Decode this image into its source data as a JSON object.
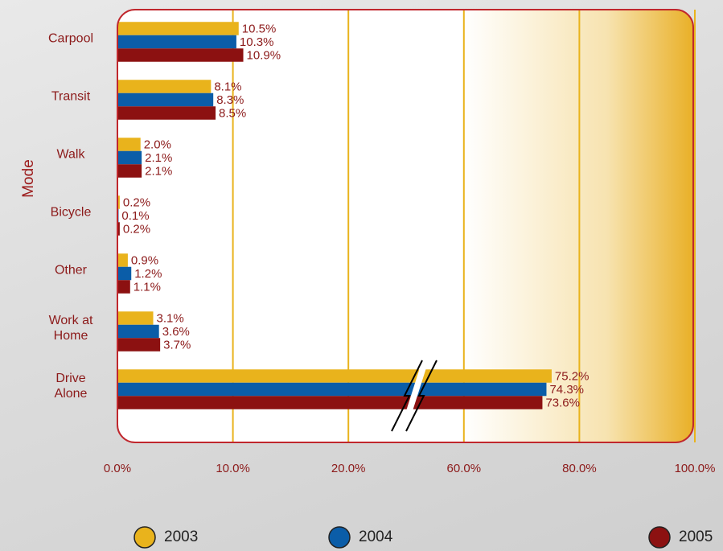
{
  "chart_data": {
    "type": "bar",
    "orientation": "horizontal",
    "y_label": "Mode",
    "categories": [
      "Carpool",
      "Transit",
      "Walk",
      "Bicycle",
      "Other",
      "Work at Home",
      "Drive Alone"
    ],
    "series": [
      {
        "name": "2003",
        "color": "#e9b31c",
        "values": [
          10.5,
          8.1,
          2.0,
          0.2,
          0.9,
          3.1,
          75.2
        ],
        "value_labels": [
          "10.5%",
          "8.1%",
          "2.0%",
          "0.2%",
          "0.9%",
          "3.1%",
          "75.2%"
        ]
      },
      {
        "name": "2004",
        "color": "#0b5da8",
        "values": [
          10.3,
          8.3,
          2.1,
          0.1,
          1.2,
          3.6,
          74.3
        ],
        "value_labels": [
          "10.3%",
          "8.3%",
          "2.1%",
          "0.1%",
          "1.2%",
          "3.6%",
          "74.3%"
        ]
      },
      {
        "name": "2005",
        "color": "#8c1111",
        "values": [
          10.9,
          8.5,
          2.1,
          0.2,
          1.1,
          3.7,
          73.6
        ],
        "value_labels": [
          "10.9%",
          "8.5%",
          "2.1%",
          "0.2%",
          "1.1%",
          "3.7%",
          "73.6%"
        ]
      }
    ],
    "xlim": [
      0,
      100
    ],
    "xticks": [
      {
        "value": 0,
        "label": "0.0%"
      },
      {
        "value": 10,
        "label": "10.0%"
      },
      {
        "value": 20,
        "label": "20.0%"
      },
      {
        "value": 60,
        "label": "60.0%"
      },
      {
        "value": 80,
        "label": "80.0%"
      },
      {
        "value": 100,
        "label": "100.0%"
      }
    ],
    "axis_break": [
      20,
      60
    ],
    "grid": true,
    "legend": "bottom"
  }
}
